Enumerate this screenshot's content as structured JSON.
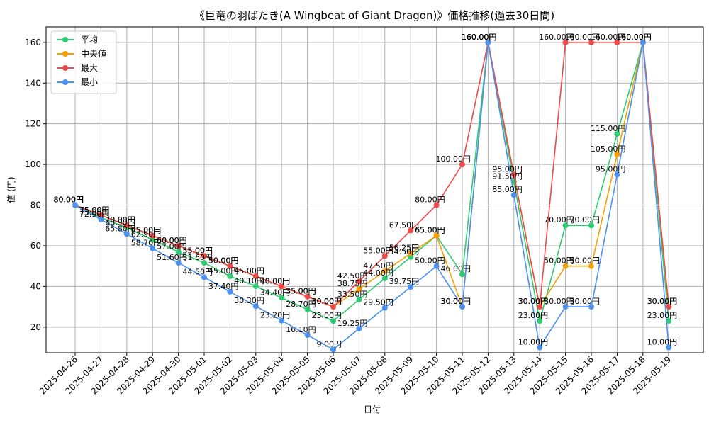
{
  "chart_data": {
    "type": "line",
    "title": "《巨竜の羽ばたき(A Wingbeat of Giant Dragon)》価格推移(過去30日間)",
    "xlabel": "日付",
    "ylabel": "値 (円)",
    "ylim": [
      7.4,
      167.6
    ],
    "yticks": [
      20,
      40,
      60,
      80,
      100,
      120,
      140,
      160
    ],
    "grid": true,
    "legend_position": "top-left",
    "label_suffix": "円",
    "categories": [
      "2025-04-26",
      "2025-04-27",
      "2025-04-28",
      "2025-04-29",
      "2025-04-30",
      "2025-05-01",
      "2025-05-02",
      "2025-05-03",
      "2025-05-04",
      "2025-05-05",
      "2025-05-06",
      "2025-05-07",
      "2025-05-08",
      "2025-05-09",
      "2025-05-10",
      "2025-05-11",
      "2025-05-12",
      "2025-05-13",
      "2025-05-14",
      "2025-05-15",
      "2025-05-16",
      "2025-05-17",
      "2025-05-18",
      "2025-05-19"
    ],
    "series": [
      {
        "name": "平均",
        "color": "#2ecc71",
        "values": [
          80.0,
          73.8,
          68.9,
          62.9,
          57.0,
          51.6,
          45.0,
          40.1,
          34.4,
          28.7,
          23.0,
          33.5,
          44.0,
          54.5,
          65.0,
          46.0,
          160.0,
          91.5,
          23.0,
          70.0,
          70.0,
          115.0,
          160.0,
          23.0
        ]
      },
      {
        "name": "中央値",
        "color": "#f5a000",
        "values": [
          80.0,
          75.0,
          70.0,
          65.0,
          60.0,
          55.0,
          50.0,
          45.0,
          40.0,
          35.0,
          30.0,
          38.75,
          47.5,
          56.25,
          65.0,
          30.0,
          160.0,
          95.0,
          30.0,
          50.0,
          50.0,
          105.0,
          160.0,
          30.0
        ]
      },
      {
        "name": "最大",
        "color": "#f04848",
        "values": [
          80.0,
          75.0,
          70.0,
          65.0,
          60.0,
          55.0,
          50.0,
          45.0,
          40.0,
          35.0,
          30.0,
          42.5,
          55.0,
          67.5,
          80.0,
          100.0,
          160.0,
          95.0,
          30.0,
          160.0,
          160.0,
          160.0,
          160.0,
          30.0
        ]
      },
      {
        "name": "最小",
        "color": "#4a90f0",
        "values": [
          80.0,
          72.9,
          65.8,
          58.7,
          51.6,
          44.5,
          37.4,
          30.3,
          23.2,
          16.1,
          9.0,
          19.25,
          29.5,
          39.75,
          50.0,
          30.0,
          160.0,
          85.0,
          10.0,
          30.0,
          30.0,
          95.0,
          160.0,
          10.0
        ]
      }
    ]
  }
}
